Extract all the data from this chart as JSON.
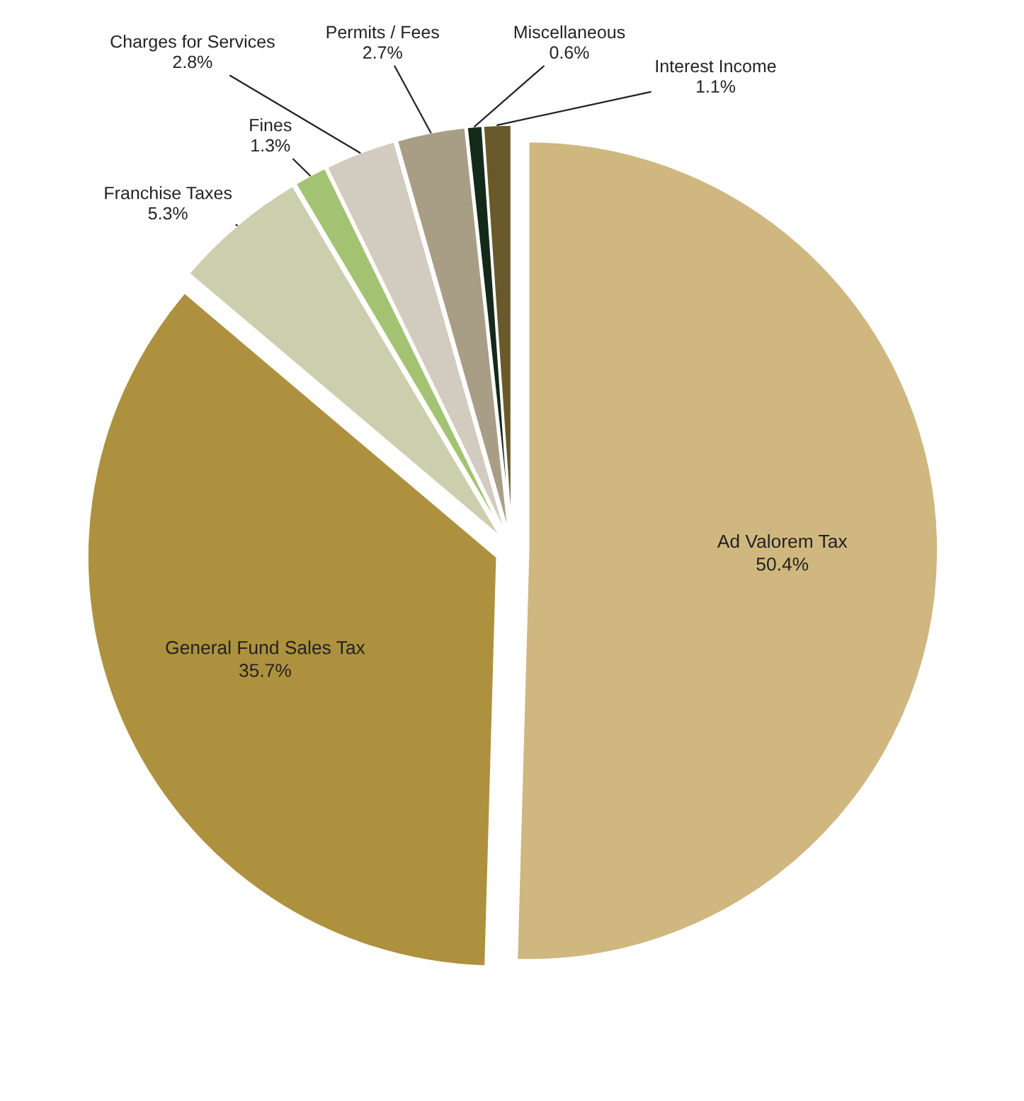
{
  "chart_data": {
    "type": "pie",
    "categories": [
      "Ad Valorem Tax",
      "General Fund Sales Tax",
      "Franchise Taxes",
      "Fines",
      "Charges for Services",
      "Permits / Fees",
      "Miscellaneous",
      "Interest Income"
    ],
    "values": [
      50.4,
      35.7,
      5.3,
      1.3,
      2.8,
      2.7,
      0.6,
      1.1
    ],
    "colors": [
      "#cfb77f",
      "#ae913e",
      "#cbcfad",
      "#a3c373",
      "#d2cbbf",
      "#a89e86",
      "#13291a",
      "#6a5a2b"
    ],
    "value_labels": [
      "50.4%",
      "35.7%",
      "5.3%",
      "1.3%",
      "2.8%",
      "2.7%",
      "0.6%",
      "1.1%"
    ],
    "legend": false
  }
}
